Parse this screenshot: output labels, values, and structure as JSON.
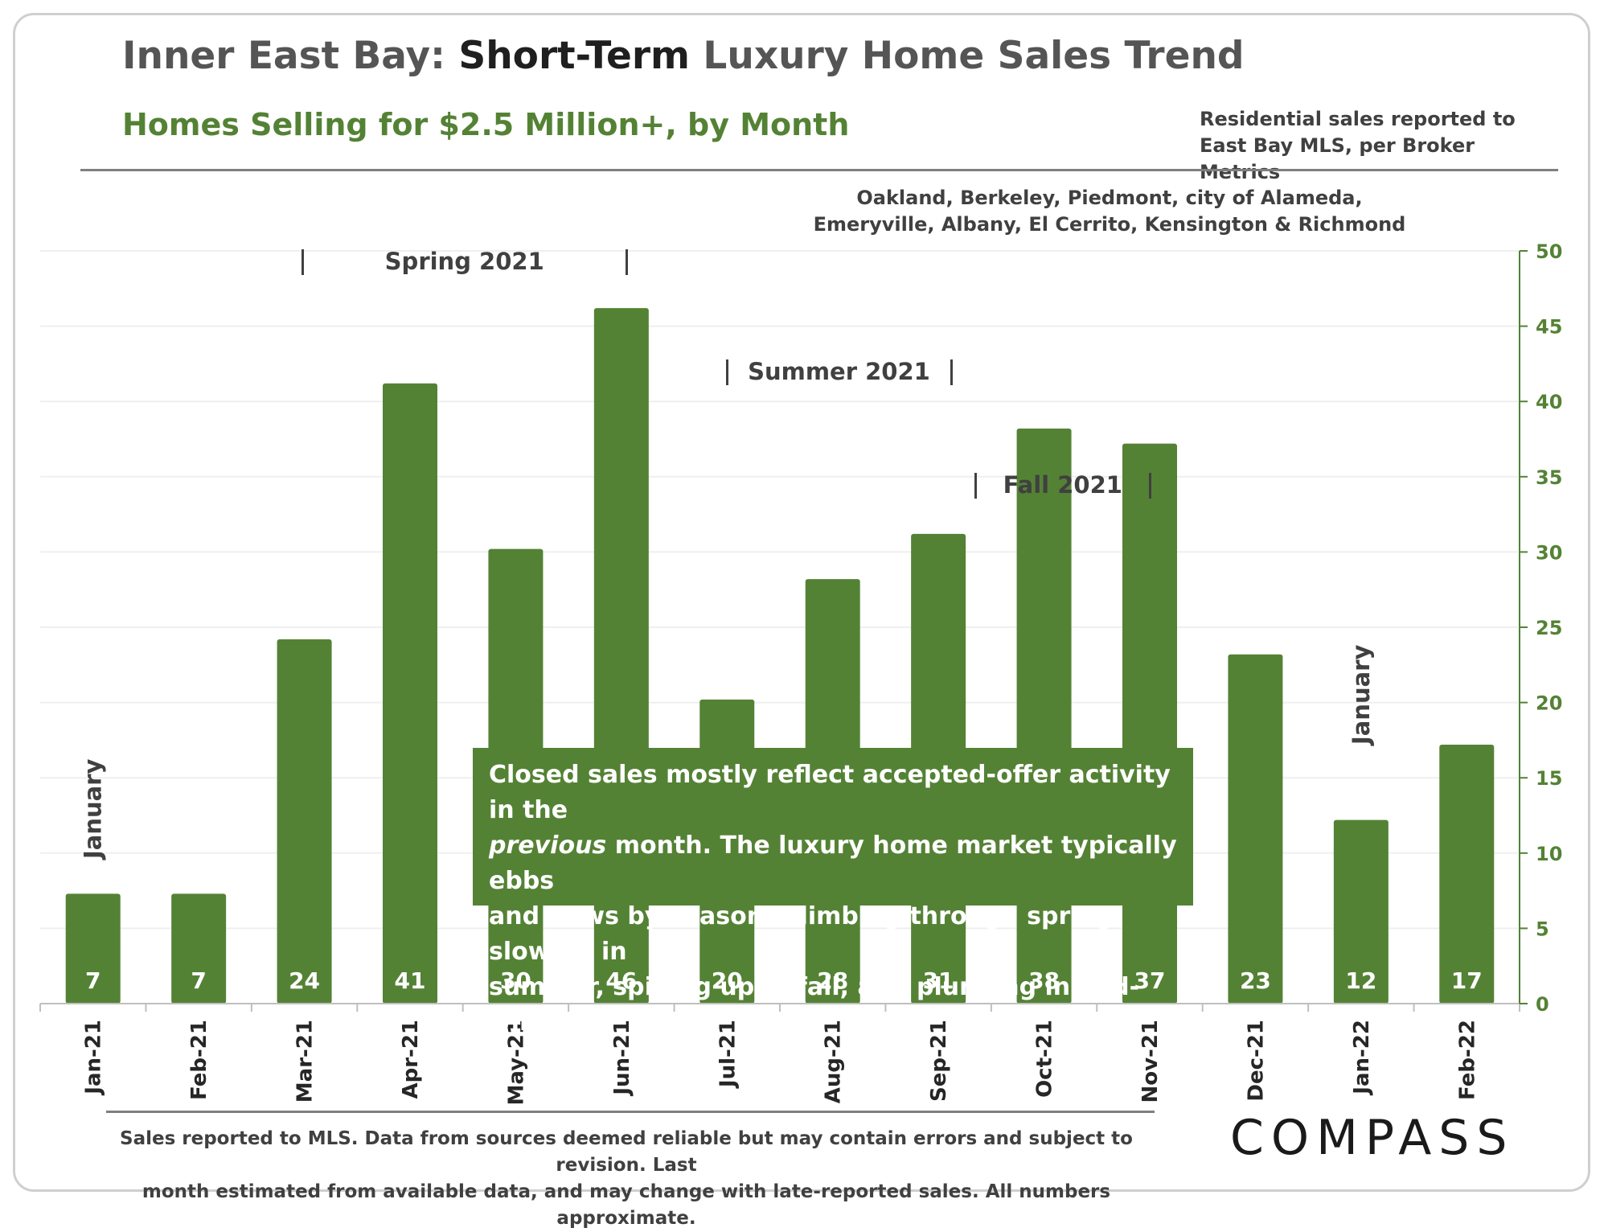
{
  "header": {
    "title_prefix": "Inner East Bay: ",
    "title_strong": "Short-Term",
    "title_suffix": " Luxury Home Sales Trend",
    "subtitle": "Homes Selling for $2.5 Million+, by Month",
    "source_note": "Residential sales reported to East Bay MLS, per Broker Metrics",
    "region_note_line1": "Oakland, Berkeley, Piedmont, city of Alameda,",
    "region_note_line2": "Emeryville, Albany, El Cerrito, Kensington & Richmond"
  },
  "chart_data": {
    "type": "bar",
    "categories": [
      "Jan-21",
      "Feb-21",
      "Mar-21",
      "Apr-21",
      "May-21",
      "Jun-21",
      "Jul-21",
      "Aug-21",
      "Sep-21",
      "Oct-21",
      "Nov-21",
      "Dec-21",
      "Jan-22",
      "Feb-22"
    ],
    "values": [
      7,
      7,
      24,
      41,
      30,
      46,
      20,
      28,
      31,
      38,
      37,
      23,
      12,
      17
    ],
    "display_values": [
      7.3,
      7.3,
      24.2,
      41.2,
      30.2,
      46.2,
      20.2,
      28.2,
      31.2,
      38.2,
      37.2,
      23.2,
      12.2,
      17.2
    ],
    "ylim": [
      0,
      50
    ],
    "yticks": [
      0,
      5,
      10,
      15,
      20,
      25,
      30,
      35,
      40,
      45,
      50
    ],
    "y_axis_position": "right",
    "grid": true,
    "bar_color": "#548235",
    "annotations": {
      "seasons": [
        {
          "label": "Spring 2021",
          "start_index": 2,
          "end_index": 5
        },
        {
          "label": "Summer 2021",
          "start_index": 6,
          "end_index": 8
        },
        {
          "label": "Fall 2021",
          "start_index": 8,
          "end_index": 10
        }
      ],
      "january_markers": [
        {
          "label": "January",
          "index": 0
        },
        {
          "label": "January",
          "index": 12
        }
      ]
    }
  },
  "callout": {
    "line1": "Closed sales mostly reflect accepted-offer activity in the",
    "line2_em": "previous",
    "line2_rest": " month. The luxury home market typically ebbs",
    "line3": "and flows by season: Climbing through spring, slowing in",
    "line4": "summer, spiking up in fall, and plunging in mid-winter."
  },
  "footer": {
    "note_line1": "Sales reported to MLS. Data from sources deemed reliable but may contain errors and subject to revision.  Last",
    "note_line2": "month estimated from available data, and may change with late-reported sales. All numbers approximate.",
    "logo": "COMPASS"
  }
}
